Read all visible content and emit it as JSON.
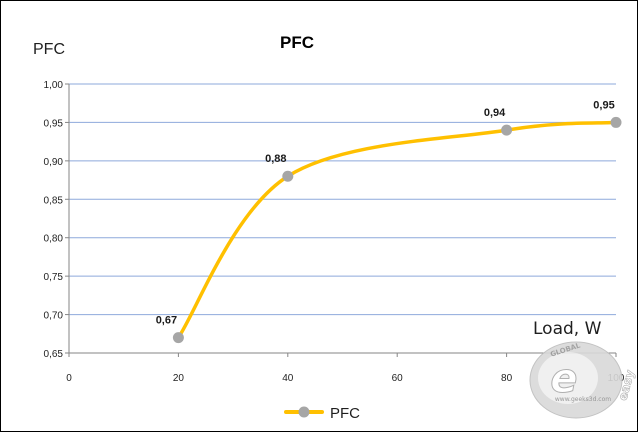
{
  "chart_data": {
    "type": "line",
    "title": "PFC",
    "xlabel": "Load, W",
    "ylabel": "PFC",
    "x_ticks": [
      "0",
      "20",
      "40",
      "60",
      "80",
      "100"
    ],
    "y_ticks": [
      "0,65",
      "0,70",
      "0,75",
      "0,80",
      "0,85",
      "0,90",
      "0,95",
      "1,00"
    ],
    "xlim": [
      0,
      100
    ],
    "ylim": [
      0.65,
      1.0
    ],
    "grid": "horizontal",
    "legend": "bottom",
    "series": [
      {
        "name": "PFC",
        "color": "#FFC000",
        "marker_color": "#A6A6A6",
        "x": [
          20,
          40,
          80,
          100
        ],
        "values": [
          0.67,
          0.88,
          0.94,
          0.95
        ],
        "labels": [
          "0,67",
          "0,88",
          "0,94",
          "0,95"
        ]
      }
    ]
  },
  "watermark": {
    "logo_text": "easy",
    "logo_sub": "GLOBAL",
    "site": "www.geeks3d.com"
  }
}
